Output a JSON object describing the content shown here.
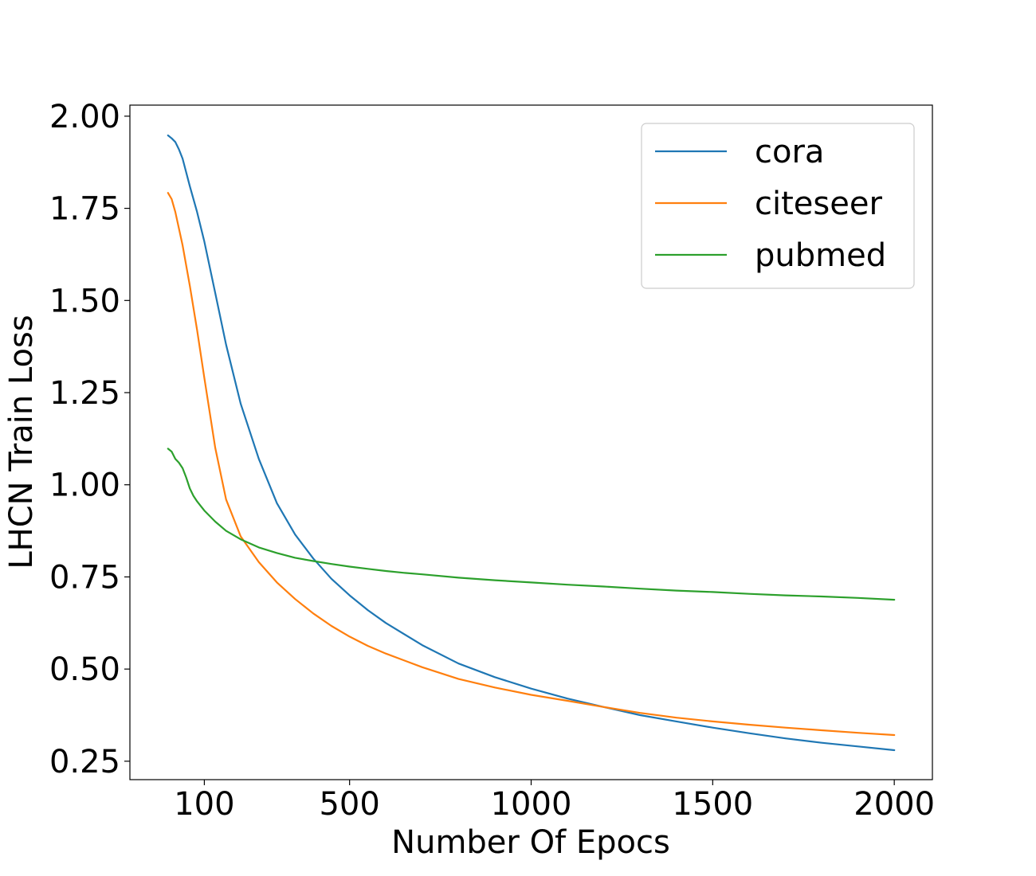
{
  "chart_data": {
    "type": "line",
    "xlabel": "Number Of Epocs",
    "ylabel": "LHCN Train Loss",
    "xlim": [
      -105,
      2105
    ],
    "ylim": [
      0.2,
      2.03
    ],
    "xticks": [
      {
        "value": 100,
        "label": "100"
      },
      {
        "value": 500,
        "label": "500"
      },
      {
        "value": 1000,
        "label": "1000"
      },
      {
        "value": 1500,
        "label": "1500"
      },
      {
        "value": 2000,
        "label": "2000"
      }
    ],
    "yticks": [
      {
        "value": 0.25,
        "label": "0.25"
      },
      {
        "value": 0.5,
        "label": "0.50"
      },
      {
        "value": 0.75,
        "label": "0.75"
      },
      {
        "value": 1.0,
        "label": "1.00"
      },
      {
        "value": 1.25,
        "label": "1.25"
      },
      {
        "value": 1.5,
        "label": "1.50"
      },
      {
        "value": 1.75,
        "label": "1.75"
      },
      {
        "value": 2.0,
        "label": "2.00"
      }
    ],
    "grid": false,
    "legend": {
      "placement": "top-right"
    },
    "series": [
      {
        "name": "cora",
        "color": "#1f77b4",
        "x": [
          0,
          10,
          20,
          30,
          40,
          60,
          80,
          100,
          130,
          160,
          200,
          250,
          300,
          350,
          400,
          450,
          500,
          550,
          600,
          700,
          800,
          900,
          1000,
          1100,
          1200,
          1300,
          1400,
          1500,
          1600,
          1700,
          1800,
          1900,
          2000
        ],
        "y": [
          1.948,
          1.94,
          1.93,
          1.91,
          1.885,
          1.81,
          1.74,
          1.66,
          1.52,
          1.38,
          1.22,
          1.07,
          0.95,
          0.865,
          0.8,
          0.745,
          0.7,
          0.66,
          0.625,
          0.565,
          0.515,
          0.478,
          0.447,
          0.42,
          0.397,
          0.375,
          0.358,
          0.341,
          0.326,
          0.312,
          0.3,
          0.29,
          0.28
        ]
      },
      {
        "name": "citeseer",
        "color": "#ff7f0e",
        "x": [
          0,
          10,
          20,
          40,
          60,
          80,
          100,
          130,
          160,
          200,
          250,
          300,
          350,
          400,
          450,
          500,
          550,
          600,
          700,
          800,
          900,
          1000,
          1100,
          1200,
          1300,
          1400,
          1500,
          1600,
          1700,
          1800,
          1900,
          2000
        ],
        "y": [
          1.792,
          1.775,
          1.74,
          1.65,
          1.54,
          1.42,
          1.29,
          1.1,
          0.96,
          0.86,
          0.79,
          0.735,
          0.69,
          0.651,
          0.617,
          0.588,
          0.563,
          0.542,
          0.505,
          0.473,
          0.45,
          0.43,
          0.414,
          0.397,
          0.381,
          0.368,
          0.358,
          0.349,
          0.341,
          0.334,
          0.327,
          0.321
        ]
      },
      {
        "name": "pubmed",
        "color": "#2ca02c",
        "x": [
          0,
          10,
          20,
          30,
          40,
          50,
          60,
          70,
          80,
          100,
          130,
          160,
          200,
          250,
          300,
          350,
          400,
          450,
          500,
          550,
          600,
          650,
          700,
          800,
          900,
          1000,
          1100,
          1200,
          1300,
          1400,
          1500,
          1600,
          1700,
          1800,
          1900,
          2000
        ],
        "y": [
          1.098,
          1.09,
          1.07,
          1.06,
          1.045,
          1.02,
          0.99,
          0.97,
          0.955,
          0.93,
          0.9,
          0.875,
          0.852,
          0.83,
          0.815,
          0.802,
          0.793,
          0.785,
          0.778,
          0.772,
          0.766,
          0.761,
          0.757,
          0.748,
          0.741,
          0.735,
          0.729,
          0.724,
          0.718,
          0.713,
          0.709,
          0.704,
          0.7,
          0.697,
          0.693,
          0.688
        ]
      }
    ]
  }
}
